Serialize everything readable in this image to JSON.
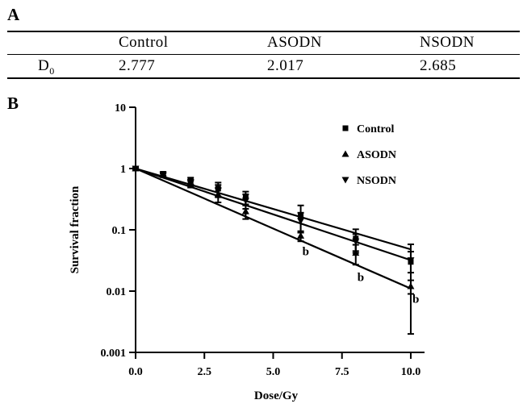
{
  "panel_a_label": "A",
  "panel_b_label": "B",
  "table": {
    "headers": [
      "",
      "Control",
      "ASODN",
      "NSODN"
    ],
    "row": {
      "label": "D",
      "label_sub": "0",
      "values": [
        "2.777",
        "2.017",
        "2.685"
      ]
    }
  },
  "chart_data": {
    "type": "line",
    "log_y": true,
    "xlabel": "Dose/Gy",
    "ylabel": "Survival fraction",
    "xlim": [
      0,
      10.5
    ],
    "ylim": [
      0.001,
      10
    ],
    "x_ticks": [
      "0.0",
      "2.5",
      "5.0",
      "7.5",
      "10.0"
    ],
    "y_ticks": [
      "10",
      "1",
      "0.1",
      "0.01",
      "0.001"
    ],
    "legend_position": "top-right",
    "grid": false,
    "x": [
      0,
      1,
      2,
      3,
      4,
      6,
      8,
      10
    ],
    "series": [
      {
        "name": "Control",
        "marker": "square",
        "values": [
          1.0,
          0.82,
          0.63,
          0.47,
          0.34,
          0.17,
          0.072,
          0.03
        ],
        "errors": [
          0.04,
          0.06,
          0.08,
          0.12,
          0.08,
          0.08,
          0.03,
          0.028
        ],
        "fit_end": 0.048
      },
      {
        "name": "ASODN",
        "marker": "triangle-up",
        "values": [
          1.0,
          0.78,
          0.56,
          0.38,
          0.2,
          0.08,
          0.042,
          0.012
        ],
        "errors": [
          0.04,
          0.05,
          0.07,
          0.1,
          0.05,
          0.015,
          0.015,
          0.003
        ],
        "fit_end": 0.011
      },
      {
        "name": "NSODN",
        "marker": "triangle-down",
        "values": [
          1.0,
          0.8,
          0.6,
          0.44,
          0.3,
          0.14,
          0.065,
          0.032
        ],
        "errors": [
          0.04,
          0.05,
          0.06,
          0.1,
          0.08,
          0.05,
          0.02,
          0.012
        ],
        "fit_end": 0.032
      }
    ],
    "annotations": [
      {
        "text": "b",
        "x": 6,
        "y": 0.045
      },
      {
        "text": "b",
        "x": 8,
        "y": 0.017
      },
      {
        "text": "b",
        "x": 10,
        "y": 0.0075
      }
    ]
  }
}
